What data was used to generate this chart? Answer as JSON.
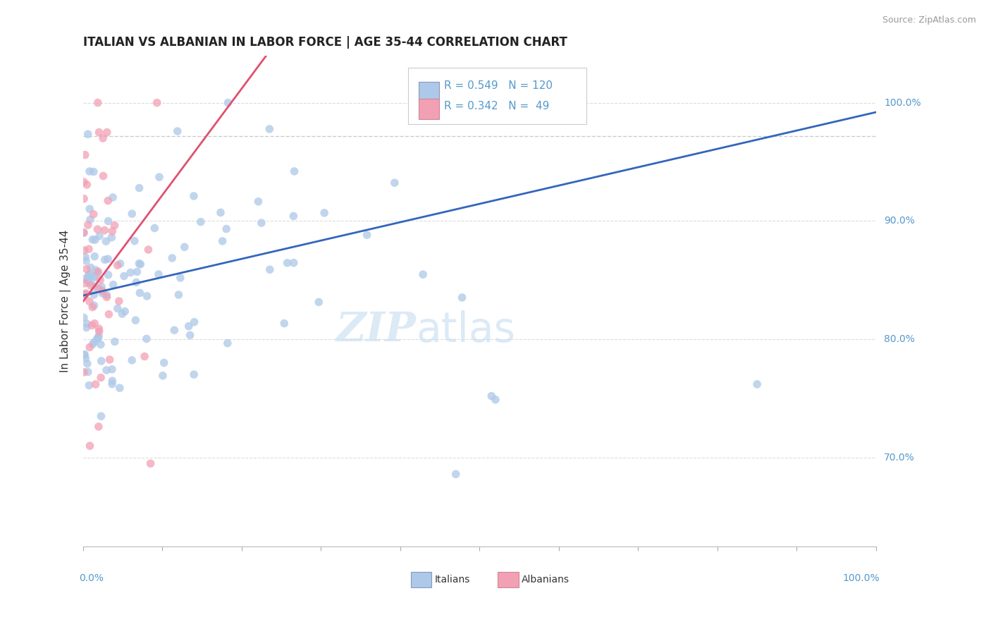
{
  "title": "ITALIAN VS ALBANIAN IN LABOR FORCE | AGE 35-44 CORRELATION CHART",
  "source": "Source: ZipAtlas.com",
  "ylabel": "In Labor Force | Age 35-44",
  "legend_blue_R": "0.549",
  "legend_blue_N": "120",
  "legend_pink_R": "0.342",
  "legend_pink_N": " 49",
  "legend_label_blue": "Italians",
  "legend_label_pink": "Albanians",
  "blue_color": "#adc8e8",
  "pink_color": "#f2a0b4",
  "blue_line_color": "#3366bb",
  "pink_line_color": "#e05070",
  "grid_color": "#dddddd",
  "dashed_line_y": 0.972,
  "xlim": [
    0.0,
    1.0
  ],
  "ylim": [
    0.625,
    1.04
  ],
  "yticks": [
    0.7,
    0.8,
    0.9,
    1.0
  ],
  "ytick_labels": [
    "70.0%",
    "80.0%",
    "90.0%",
    "100.0%"
  ],
  "watermark_zip": "ZIP",
  "watermark_atlas": "atlas",
  "background_color": "#ffffff",
  "title_fontsize": 12,
  "axis_label_color": "#5599cc",
  "title_color": "#222222"
}
